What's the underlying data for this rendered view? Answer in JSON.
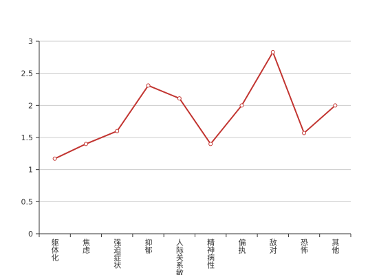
{
  "chart_data": {
    "type": "line",
    "categories": [
      "躯体化",
      "焦虑",
      "强迫症状",
      "抑郁",
      "人际关系敏感",
      "精神病性",
      "偏执",
      "敌对",
      "恐怖",
      "其他"
    ],
    "series": [
      {
        "color": "#c23531",
        "values": [
          1.17,
          1.4,
          1.6,
          2.31,
          2.11,
          1.4,
          2.0,
          2.83,
          1.57,
          2.0
        ]
      }
    ],
    "ylim": [
      0,
      3
    ],
    "yticks": [
      0,
      0.5,
      1,
      1.5,
      2,
      2.5,
      3
    ],
    "grid": true
  }
}
